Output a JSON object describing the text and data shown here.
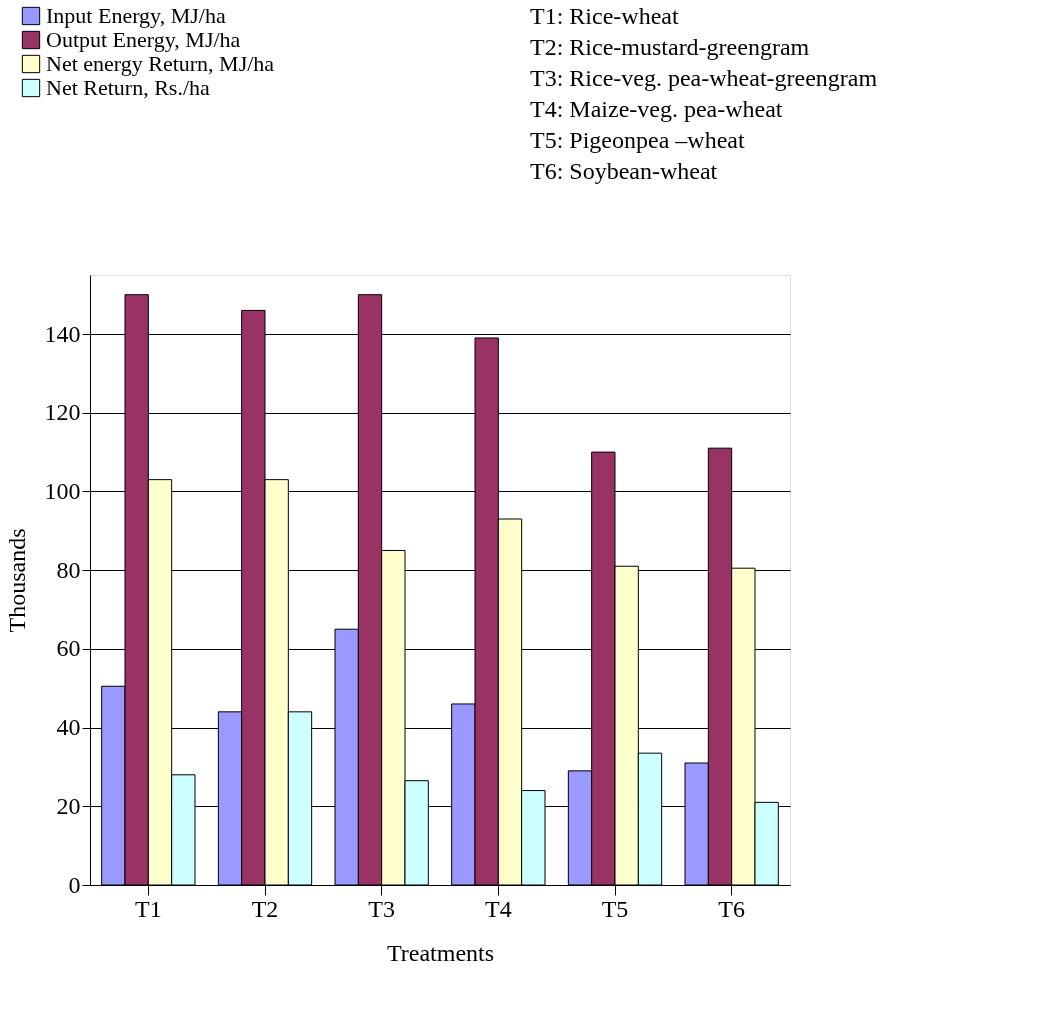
{
  "chart_data": {
    "type": "bar",
    "xlabel": "Treatments",
    "ylabel": "Thousands",
    "categories": [
      "T1",
      "T2",
      "T3",
      "T4",
      "T5",
      "T6"
    ],
    "series": [
      {
        "name": "Input Energy, MJ/ha",
        "color": "#9999ff",
        "values": [
          50.5,
          44,
          65,
          46,
          29,
          31
        ]
      },
      {
        "name": "Output Energy, MJ/ha",
        "color": "#993366",
        "values": [
          150,
          146,
          150,
          139,
          110,
          111
        ]
      },
      {
        "name": "Net energy Return, MJ/ha",
        "color": "#ffffcc",
        "values": [
          103,
          103,
          85,
          93,
          81,
          80.5
        ]
      },
      {
        "name": "Net Return, Rs./ha",
        "color": "#ccffff",
        "values": [
          28,
          44,
          26.5,
          24,
          33.5,
          21
        ]
      }
    ],
    "ylim": [
      0,
      155
    ],
    "yticks": [
      0,
      20,
      40,
      60,
      80,
      100,
      120,
      140
    ],
    "grid": "y",
    "legend": "top left",
    "annotations": [
      "T1: Rice-wheat",
      "T2: Rice-mustard-greengram",
      "T3: Rice-veg. pea-wheat-greengram",
      "T4: Maize-veg. pea-wheat",
      "T5: Pigeonpea –wheat",
      "T6: Soybean-wheat"
    ]
  }
}
